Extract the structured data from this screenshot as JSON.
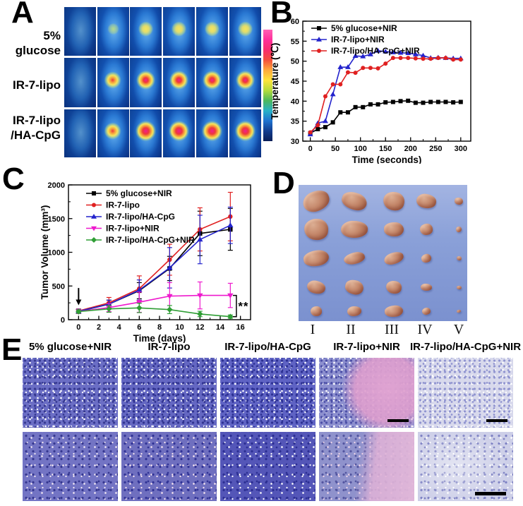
{
  "panels": {
    "a": "A",
    "b": "B",
    "c": "C",
    "d": "D",
    "e": "E"
  },
  "panel_a": {
    "row_labels": [
      [
        "5% glucose",
        ""
      ],
      [
        "IR-7-lipo",
        ""
      ],
      [
        "IR-7-lipo",
        "/HA-CpG"
      ]
    ],
    "heat_levels": [
      [
        0,
        1,
        2,
        2,
        2,
        2
      ],
      [
        0,
        3,
        4,
        4,
        4,
        4
      ],
      [
        0,
        3,
        5,
        5,
        5,
        5
      ]
    ],
    "palette": {
      "body_blue": "#1668c6",
      "mid_blue": "#0d4da8",
      "deep_blue": "#082f7e",
      "glow_green": "#bcdc82",
      "warm_yellow": "#f5e45c",
      "hot_orange": "#f5a43c",
      "hot_red": "#ee3a3a",
      "hottest_magenta": "#f01f8c"
    },
    "colorbar_stops": [
      "#ff5fb5",
      "#ff2e9a",
      "#f82d6e",
      "#f4503c",
      "#ffaa3c",
      "#ffe43c",
      "#b4dc3c",
      "#4cb85c",
      "#28b2c8",
      "#1f72d0",
      "#123c8e",
      "#0a1e56"
    ]
  },
  "chart_data": [
    {
      "id": "chartB",
      "type": "line",
      "title": "",
      "xlabel": "Time (seconds)",
      "ylabel": "Temperature (℃)",
      "xlim": [
        -15,
        320
      ],
      "ylim": [
        30,
        60
      ],
      "xticks": [
        0,
        50,
        100,
        150,
        200,
        250,
        300
      ],
      "yticks": [
        30,
        35,
        40,
        45,
        50,
        55,
        60
      ],
      "xminor": 25,
      "yminor": 2.5,
      "grid": false,
      "legend_position": "top-left",
      "x": [
        0,
        15,
        30,
        45,
        60,
        75,
        90,
        105,
        120,
        135,
        150,
        165,
        180,
        195,
        210,
        225,
        240,
        255,
        270,
        285,
        300
      ],
      "series": [
        {
          "name": "5% glucose+NIR",
          "color": "#000000",
          "marker": "square",
          "values": [
            32.0,
            33.0,
            33.5,
            34.7,
            37.2,
            37.2,
            38.5,
            38.5,
            39.2,
            39.2,
            39.7,
            39.8,
            40.0,
            40.1,
            39.6,
            39.6,
            39.8,
            39.8,
            39.8,
            39.7,
            39.8
          ]
        },
        {
          "name": "IR-7-lipo+NIR",
          "color": "#2323cc",
          "marker": "triangle",
          "values": [
            31.7,
            34.5,
            35.0,
            41.7,
            48.5,
            48.5,
            51.3,
            51.2,
            51.7,
            52.6,
            52.4,
            52.2,
            52.1,
            52.0,
            51.7,
            51.4,
            50.8,
            50.9,
            50.8,
            50.7,
            50.7
          ]
        },
        {
          "name": "IR-7-lipo/HA-CpG+NIR",
          "color": "#e02020",
          "marker": "circle",
          "values": [
            32.2,
            34.0,
            41.2,
            44.2,
            44.2,
            47.2,
            47.1,
            48.3,
            48.3,
            48.2,
            49.4,
            50.8,
            50.8,
            50.8,
            50.7,
            50.6,
            50.6,
            50.8,
            50.8,
            50.4,
            50.4
          ]
        }
      ]
    },
    {
      "id": "chartC",
      "type": "line",
      "title": "",
      "xlabel": "Time (days)",
      "ylabel": "Tumor Volume (mm³)",
      "xlim": [
        -1,
        17
      ],
      "ylim": [
        0,
        2000
      ],
      "xticks": [
        0,
        2,
        4,
        6,
        8,
        10,
        12,
        14,
        16
      ],
      "yticks": [
        0,
        500,
        1000,
        1500,
        2000
      ],
      "xminor": 1,
      "yminor": 250,
      "grid": false,
      "legend_position": "top-left",
      "x": [
        0,
        3,
        6,
        9,
        12,
        15
      ],
      "series": [
        {
          "name": "5% glucose+NIR",
          "color": "#000000",
          "marker": "square",
          "values": [
            120,
            230,
            430,
            760,
            1280,
            1340
          ],
          "errors": [
            30,
            60,
            120,
            180,
            330,
            310
          ]
        },
        {
          "name": "IR-7-lipo",
          "color": "#e02020",
          "marker": "circle",
          "values": [
            130,
            250,
            460,
            890,
            1340,
            1530
          ],
          "errors": [
            30,
            80,
            190,
            230,
            320,
            360
          ]
        },
        {
          "name": "IR-7-lipo/HA-CpG",
          "color": "#2323cc",
          "marker": "triangle",
          "values": [
            125,
            230,
            440,
            770,
            1190,
            1400
          ],
          "errors": [
            30,
            60,
            150,
            300,
            360,
            270
          ]
        },
        {
          "name": "IR-7-lipo+NIR",
          "color": "#ee19cd",
          "marker": "triangle-down",
          "values": [
            120,
            180,
            260,
            350,
            360,
            360
          ],
          "errors": [
            30,
            60,
            150,
            200,
            200,
            180
          ]
        },
        {
          "name": "IR-7-lipo/HA-CpG+NIR",
          "color": "#2f9e35",
          "marker": "diamond",
          "values": [
            120,
            160,
            175,
            150,
            85,
            45
          ],
          "errors": [
            25,
            50,
            70,
            60,
            40,
            25
          ]
        }
      ],
      "arrow": {
        "x": 0,
        "y_from": 470,
        "y_to": 215
      },
      "significance": {
        "text": "**",
        "x": 15.6,
        "between": [
          "IR-7-lipo+NIR",
          "IR-7-lipo/HA-CpG+NIR"
        ]
      }
    }
  ],
  "panel_d": {
    "column_labels": [
      "I",
      "II",
      "III",
      "IV",
      "V"
    ],
    "background": "#8aa0d8",
    "tumor_color": "#c4876a",
    "sizes": [
      [
        [
          38,
          28
        ],
        [
          36,
          24
        ],
        [
          30,
          26
        ],
        [
          28,
          20
        ],
        [
          12,
          10
        ]
      ],
      [
        [
          34,
          30
        ],
        [
          38,
          24
        ],
        [
          28,
          20
        ],
        [
          18,
          16
        ],
        [
          8,
          8
        ]
      ],
      [
        [
          36,
          22
        ],
        [
          30,
          16
        ],
        [
          28,
          16
        ],
        [
          14,
          12
        ],
        [
          7,
          6
        ]
      ],
      [
        [
          26,
          18
        ],
        [
          26,
          20
        ],
        [
          22,
          18
        ],
        [
          16,
          10
        ],
        [
          7,
          5
        ]
      ],
      [
        [
          16,
          14
        ],
        [
          20,
          14
        ],
        [
          26,
          16
        ],
        [
          12,
          10
        ],
        [
          6,
          4
        ]
      ]
    ]
  },
  "panel_e": {
    "headers": [
      "5% glucose+NIR",
      "IR-7-lipo",
      "IR-7-lipo/HA-CpG",
      "IR-7-lipo+NIR",
      "IR-7-lipo/HA-CpG+NIR"
    ],
    "rows": [
      [
        {
          "base": "#6b6ec5",
          "dark": "#34378f",
          "light": "#ffffff",
          "overlay": "",
          "scalebar": false
        },
        {
          "base": "#6467c2",
          "dark": "#2e318e",
          "light": "#ffffff",
          "overlay": "",
          "scalebar": false
        },
        {
          "base": "#5f63c4",
          "dark": "#2b2f92",
          "light": "#ffffff",
          "overlay": "",
          "scalebar": false
        },
        {
          "base": "#8d90cf",
          "dark": "#4a4da5",
          "light": "#ffffff",
          "overlay": "ov-pink-right",
          "scalebar": true
        },
        {
          "base": "#d8d9ec",
          "dark": "#8e92cf",
          "light": "#ffffff",
          "overlay": "ov-rim-right",
          "scalebar": true
        }
      ],
      [
        {
          "base": "#7374c4",
          "dark": "#34368f",
          "light": "#f3e9f2",
          "overlay": "",
          "scalebar": false
        },
        {
          "base": "#6f6fbf",
          "dark": "#303295",
          "light": "#f7e5ef",
          "overlay": "",
          "scalebar": false
        },
        {
          "base": "#5456b8",
          "dark": "#2b2e92",
          "light": "#ffffff",
          "overlay": "",
          "scalebar": false
        },
        {
          "base": "#8f92cc",
          "dark": "#52549f",
          "light": "#f0d6e8",
          "overlay": "ov-pink-right2",
          "scalebar": false
        },
        {
          "base": "#cdcfe8",
          "dark": "#7b7fc2",
          "light": "#ffffff",
          "overlay": "ov-pale",
          "scalebar": true
        }
      ]
    ]
  }
}
